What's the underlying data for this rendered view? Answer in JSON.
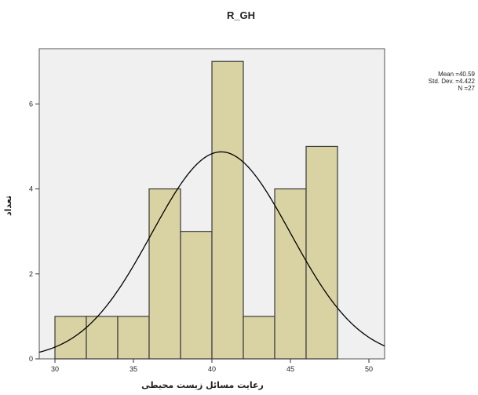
{
  "chart_data": {
    "type": "bar",
    "subtype": "histogram",
    "title": "R_GH",
    "xlabel": "رعایت مسائل زیست محیطی",
    "ylabel": "تعداد",
    "xlim": [
      29,
      51
    ],
    "ylim": [
      0,
      7.3
    ],
    "x_ticks": [
      30,
      35,
      40,
      45,
      50
    ],
    "y_ticks": [
      0,
      2,
      4,
      6
    ],
    "bin_edges": [
      30,
      32,
      34,
      36,
      38,
      40,
      42,
      44,
      46,
      48
    ],
    "values": [
      1,
      1,
      1,
      4,
      3,
      7,
      1,
      4,
      5
    ],
    "normal_curve": {
      "mean": 40.59,
      "std": 4.422,
      "n": 27,
      "bin_width": 2
    },
    "stats": {
      "mean": "Mean =40.59",
      "std": "Std. Dev. =4.422",
      "n": "N =27"
    },
    "colors": {
      "bar_fill": "#d9d3a3",
      "bar_stroke": "#3a3a3a",
      "plot_bg": "#f0f0f0",
      "curve": "#000000"
    },
    "grid": false
  }
}
